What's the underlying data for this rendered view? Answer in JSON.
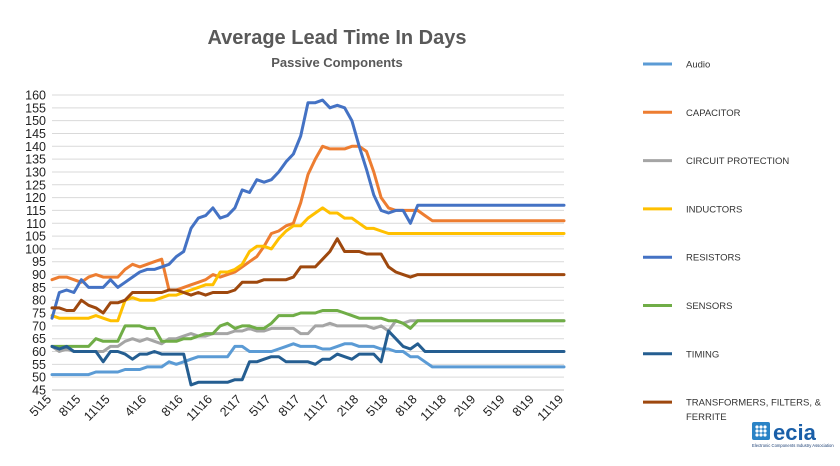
{
  "chart_data": {
    "type": "line",
    "title": "Average Lead Time In Days",
    "subtitle": "Passive Components",
    "ylim": [
      45,
      160
    ],
    "y_ticks": [
      45,
      50,
      55,
      60,
      65,
      70,
      75,
      80,
      85,
      90,
      95,
      100,
      105,
      110,
      115,
      120,
      125,
      130,
      135,
      140,
      145,
      150,
      155,
      160
    ],
    "x_labels": [
      "5\\15",
      "8\\15",
      "11\\15",
      "4\\16",
      "8\\16",
      "11\\16",
      "2\\17",
      "5\\17",
      "8\\17",
      "11\\17",
      "2\\18",
      "5\\18",
      "8\\18",
      "11\\18",
      "2\\19",
      "5\\19",
      "8\\19",
      "11\\19"
    ],
    "x_label_idx": [
      0,
      4,
      8,
      13,
      18,
      22,
      26,
      30,
      34,
      38,
      42,
      46,
      50,
      54,
      58,
      62,
      66,
      70
    ],
    "n_points": 71,
    "grid": true,
    "legend_position": "right",
    "series": [
      {
        "name": "Audio",
        "color": "#5b9bd5",
        "values": [
          51,
          51,
          51,
          51,
          51,
          51,
          52,
          52,
          52,
          52,
          53,
          53,
          53,
          54,
          54,
          54,
          56,
          55,
          56,
          57,
          58,
          58,
          58,
          58,
          58,
          62,
          62,
          60,
          60,
          60,
          60,
          61,
          62,
          63,
          62,
          62,
          62,
          61,
          61,
          62,
          63,
          63,
          62,
          62,
          62,
          61,
          61,
          60,
          60,
          58,
          58,
          56,
          54,
          54,
          54,
          54,
          54,
          54,
          54,
          54,
          54,
          54,
          54,
          54,
          54,
          54,
          54,
          54,
          54,
          54,
          54
        ]
      },
      {
        "name": "CAPACITOR",
        "color": "#ed7d31",
        "values": [
          88,
          89,
          89,
          88,
          87,
          89,
          90,
          89,
          89,
          89,
          92,
          94,
          93,
          94,
          95,
          96,
          84,
          84,
          85,
          86,
          87,
          88,
          90,
          89,
          90,
          91,
          93,
          95,
          97,
          101,
          106,
          107,
          109,
          110,
          118,
          129,
          135,
          140,
          139,
          139,
          139,
          140,
          140,
          138,
          130,
          120,
          116,
          115,
          115,
          115,
          115,
          113,
          111,
          111,
          111,
          111,
          111,
          111,
          111,
          111,
          111,
          111,
          111,
          111,
          111,
          111,
          111,
          111,
          111,
          111,
          111
        ]
      },
      {
        "name": "CIRCUIT PROTECTION",
        "color": "#a5a5a5",
        "values": [
          62,
          60,
          61,
          60,
          60,
          60,
          60,
          60,
          62,
          62,
          64,
          65,
          64,
          65,
          64,
          63,
          65,
          65,
          66,
          67,
          66,
          66,
          67,
          67,
          67,
          68,
          68,
          69,
          68,
          68,
          69,
          69,
          69,
          69,
          67,
          67,
          70,
          70,
          71,
          70,
          70,
          70,
          70,
          70,
          69,
          70,
          68,
          72,
          71,
          72,
          72,
          72,
          72,
          72,
          72,
          72,
          72,
          72,
          72,
          72,
          72,
          72,
          72,
          72,
          72,
          72,
          72,
          72,
          72,
          72,
          72
        ]
      },
      {
        "name": "INDUCTORS",
        "color": "#ffc000",
        "values": [
          74,
          73,
          73,
          73,
          73,
          73,
          74,
          73,
          72,
          72,
          80,
          81,
          80,
          80,
          80,
          81,
          82,
          82,
          83,
          84,
          85,
          86,
          86,
          91,
          91,
          92,
          94,
          99,
          101,
          101,
          100,
          104,
          107,
          109,
          109,
          112,
          114,
          116,
          114,
          114,
          112,
          112,
          110,
          108,
          108,
          107,
          106,
          106,
          106,
          106,
          106,
          106,
          106,
          106,
          106,
          106,
          106,
          106,
          106,
          106,
          106,
          106,
          106,
          106,
          106,
          106,
          106,
          106,
          106,
          106,
          106
        ]
      },
      {
        "name": "RESISTORS",
        "color": "#4472c4",
        "values": [
          73,
          83,
          84,
          83,
          88,
          85,
          85,
          85,
          88,
          85,
          87,
          89,
          91,
          92,
          92,
          93,
          94,
          97,
          99,
          108,
          112,
          113,
          116,
          112,
          113,
          116,
          123,
          122,
          127,
          126,
          127,
          130,
          134,
          137,
          144,
          157,
          157,
          158,
          155,
          156,
          155,
          150,
          140,
          131,
          121,
          115,
          114,
          115,
          115,
          110,
          117,
          117,
          117,
          117,
          117,
          117,
          117,
          117,
          117,
          117,
          117,
          117,
          117,
          117,
          117,
          117,
          117,
          117,
          117,
          117,
          117
        ]
      },
      {
        "name": "SENSORS",
        "color": "#70ad47",
        "values": [
          62,
          62,
          62,
          62,
          62,
          62,
          65,
          64,
          64,
          64,
          70,
          70,
          70,
          69,
          69,
          64,
          64,
          64,
          65,
          65,
          66,
          67,
          67,
          70,
          71,
          69,
          70,
          70,
          69,
          69,
          71,
          74,
          74,
          74,
          75,
          75,
          75,
          76,
          76,
          76,
          75,
          74,
          73,
          73,
          73,
          73,
          72,
          72,
          71,
          69,
          72,
          72,
          72,
          72,
          72,
          72,
          72,
          72,
          72,
          72,
          72,
          72,
          72,
          72,
          72,
          72,
          72,
          72,
          72,
          72,
          72
        ]
      },
      {
        "name": "TIMING",
        "color": "#255e91",
        "values": [
          62,
          61,
          62,
          60,
          60,
          60,
          60,
          56,
          60,
          60,
          59,
          57,
          59,
          59,
          60,
          59,
          59,
          59,
          59,
          47,
          48,
          48,
          48,
          48,
          48,
          49,
          49,
          56,
          56,
          57,
          58,
          58,
          56,
          56,
          56,
          56,
          55,
          57,
          57,
          59,
          58,
          57,
          59,
          59,
          59,
          56,
          68,
          65,
          62,
          61,
          63,
          60,
          60,
          60,
          60,
          60,
          60,
          60,
          60,
          60,
          60,
          60,
          60,
          60,
          60,
          60,
          60,
          60,
          60,
          60,
          60
        ]
      },
      {
        "name": "TRANSFORMERS, FILTERS, & FERRITE",
        "color": "#9e480e",
        "values": [
          77,
          77,
          76,
          76,
          80,
          78,
          77,
          75,
          79,
          79,
          80,
          83,
          83,
          83,
          83,
          83,
          84,
          84,
          83,
          82,
          83,
          82,
          83,
          83,
          83,
          84,
          87,
          87,
          87,
          88,
          88,
          88,
          88,
          89,
          93,
          93,
          93,
          96,
          99,
          104,
          99,
          99,
          99,
          98,
          98,
          98,
          93,
          91,
          90,
          89,
          90,
          90,
          90,
          90,
          90,
          90,
          90,
          90,
          90,
          90,
          90,
          90,
          90,
          90,
          90,
          90,
          90,
          90,
          90,
          90,
          90
        ]
      }
    ]
  },
  "legend": [
    {
      "label": "Audio",
      "color": "#5b9bd5"
    },
    {
      "label": "CAPACITOR",
      "color": "#ed7d31"
    },
    {
      "label": "CIRCUIT PROTECTION",
      "color": "#a5a5a5"
    },
    {
      "label": "INDUCTORS",
      "color": "#ffc000"
    },
    {
      "label": "RESISTORS",
      "color": "#4472c4"
    },
    {
      "label": "SENSORS",
      "color": "#70ad47"
    },
    {
      "label": "TIMING",
      "color": "#255e91"
    },
    {
      "label": "TRANSFORMERS, FILTERS, &",
      "label2": "FERRITE",
      "color": "#9e480e"
    }
  ],
  "logo": {
    "text": "ecia",
    "subtext": "Electronic Components Industry Association",
    "color": "#1a5fa8"
  }
}
